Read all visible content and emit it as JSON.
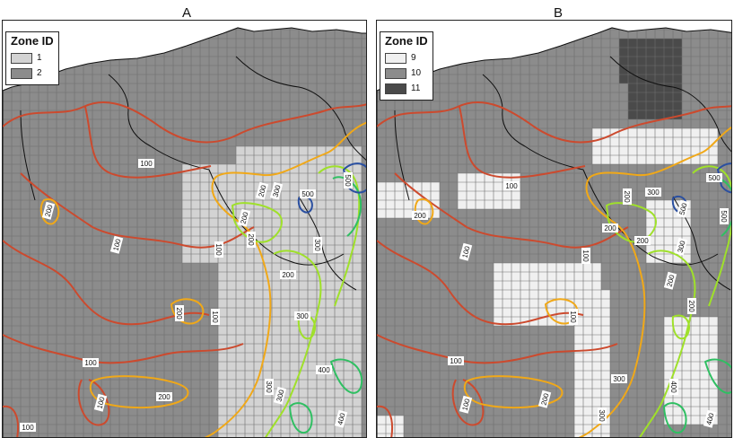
{
  "panels": [
    {
      "title": "A",
      "legend_title": "Zone ID",
      "zones": [
        {
          "label": "1",
          "color": "#d3d3d3"
        },
        {
          "label": "2",
          "color": "#8c8c8c"
        }
      ]
    },
    {
      "title": "B",
      "legend_title": "Zone ID",
      "zones": [
        {
          "label": "9",
          "color": "#f0f0f0"
        },
        {
          "label": "10",
          "color": "#8c8c8c"
        },
        {
          "label": "11",
          "color": "#4a4a4a"
        }
      ]
    }
  ],
  "contour_levels": [
    {
      "value": "100",
      "color": "#cc4a2e"
    },
    {
      "value": "200",
      "color": "#f0a818"
    },
    {
      "value": "300",
      "color": "#9fe02a"
    },
    {
      "value": "400",
      "color": "#2fbf62"
    },
    {
      "value": "500",
      "color": "#2a4fa0"
    }
  ],
  "contour_labels_a": [
    "100",
    "100",
    "100",
    "100",
    "100",
    "100",
    "100",
    "200",
    "200",
    "200",
    "200",
    "200",
    "200",
    "300",
    "300",
    "300",
    "300",
    "300",
    "400",
    "400",
    "500",
    "500",
    "200"
  ],
  "contour_labels_b": [
    "100",
    "100",
    "100",
    "100",
    "100",
    "100",
    "200",
    "200",
    "200",
    "200",
    "200",
    "200",
    "300",
    "300",
    "300",
    "300",
    "400",
    "400",
    "500",
    "500",
    "500",
    "200"
  ],
  "colors": {
    "sea": "#ffffff",
    "grid_line": "#6e6e6e",
    "border_line": "#111111",
    "panel_border": "#222222"
  }
}
